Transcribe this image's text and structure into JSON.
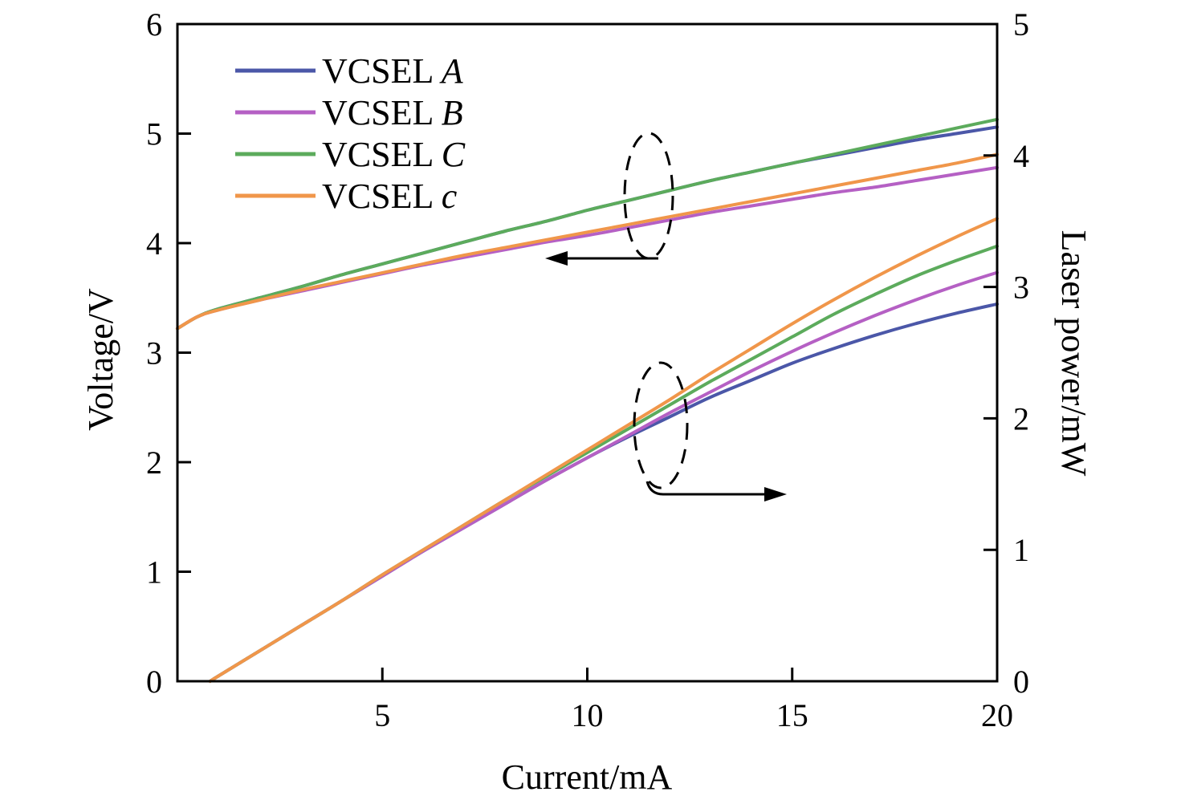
{
  "chart_data": {
    "type": "line",
    "xlabel": "Current/mA",
    "ylabel_left": "Voltage/V",
    "ylabel_right": "Laser power/mW",
    "xlim": [
      0,
      20
    ],
    "ylim_left": [
      0,
      6
    ],
    "ylim_right": [
      0,
      5
    ],
    "x_ticks": [
      5,
      10,
      15,
      20
    ],
    "y_left_ticks": [
      0,
      1,
      2,
      3,
      4,
      5,
      6
    ],
    "y_right_ticks": [
      0,
      1,
      2,
      3,
      4,
      5
    ],
    "grid": false,
    "legend_position": "top-left",
    "legend": [
      {
        "prefix": "VCSEL ",
        "letter": "A",
        "color": "#4b57a8"
      },
      {
        "prefix": "VCSEL ",
        "letter": "B",
        "color": "#b560c4"
      },
      {
        "prefix": "VCSEL ",
        "letter": "C",
        "color": "#5cab5c"
      },
      {
        "prefix": "VCSEL ",
        "letter": "c",
        "color": "#f0964a"
      }
    ],
    "voltage_series": [
      {
        "legend_index": 0,
        "axis": "left",
        "x": [
          0,
          0.5,
          1,
          2,
          3,
          4,
          5,
          6,
          7,
          8,
          9,
          10,
          11,
          12,
          13,
          14,
          15,
          16,
          17,
          18,
          19,
          20
        ],
        "y": [
          3.22,
          3.33,
          3.4,
          3.5,
          3.6,
          3.71,
          3.81,
          3.91,
          4.01,
          4.11,
          4.2,
          4.3,
          4.39,
          4.48,
          4.57,
          4.65,
          4.73,
          4.8,
          4.87,
          4.94,
          5.0,
          5.06
        ]
      },
      {
        "legend_index": 1,
        "axis": "left",
        "x": [
          0,
          0.5,
          1,
          2,
          3,
          4,
          5,
          6,
          7,
          8,
          9,
          10,
          11,
          12,
          13,
          14,
          15,
          16,
          17,
          18,
          19,
          20
        ],
        "y": [
          3.22,
          3.33,
          3.39,
          3.48,
          3.56,
          3.64,
          3.72,
          3.8,
          3.87,
          3.94,
          4.01,
          4.07,
          4.14,
          4.21,
          4.28,
          4.34,
          4.4,
          4.46,
          4.51,
          4.57,
          4.63,
          4.69
        ]
      },
      {
        "legend_index": 2,
        "axis": "left",
        "x": [
          0,
          0.5,
          1,
          2,
          3,
          4,
          5,
          6,
          7,
          8,
          9,
          10,
          11,
          12,
          13,
          14,
          15,
          16,
          17,
          18,
          19,
          20
        ],
        "y": [
          3.22,
          3.33,
          3.4,
          3.5,
          3.6,
          3.71,
          3.81,
          3.91,
          4.01,
          4.11,
          4.2,
          4.3,
          4.39,
          4.48,
          4.57,
          4.65,
          4.73,
          4.81,
          4.89,
          4.97,
          5.05,
          5.13
        ]
      },
      {
        "legend_index": 3,
        "axis": "left",
        "x": [
          0,
          0.5,
          1,
          2,
          3,
          4,
          5,
          6,
          7,
          8,
          9,
          10,
          11,
          12,
          13,
          14,
          15,
          16,
          17,
          18,
          19,
          20
        ],
        "y": [
          3.22,
          3.33,
          3.39,
          3.48,
          3.57,
          3.65,
          3.73,
          3.81,
          3.89,
          3.96,
          4.03,
          4.1,
          4.17,
          4.24,
          4.31,
          4.38,
          4.45,
          4.52,
          4.59,
          4.66,
          4.73,
          4.81
        ]
      }
    ],
    "power_series": [
      {
        "legend_index": 0,
        "axis": "right",
        "x": [
          0.8,
          1,
          2,
          3,
          4,
          5,
          6,
          7,
          8,
          9,
          10,
          11,
          12,
          13,
          14,
          15,
          16,
          17,
          18,
          19,
          20
        ],
        "y": [
          0.0,
          0.04,
          0.23,
          0.42,
          0.61,
          0.8,
          0.99,
          1.17,
          1.35,
          1.53,
          1.7,
          1.86,
          2.01,
          2.16,
          2.29,
          2.42,
          2.53,
          2.63,
          2.72,
          2.8,
          2.87
        ]
      },
      {
        "legend_index": 1,
        "axis": "right",
        "x": [
          0.8,
          1,
          2,
          3,
          4,
          5,
          6,
          7,
          8,
          9,
          10,
          11,
          12,
          13,
          14,
          15,
          16,
          17,
          18,
          19,
          20
        ],
        "y": [
          0.0,
          0.04,
          0.23,
          0.42,
          0.61,
          0.8,
          0.99,
          1.17,
          1.35,
          1.53,
          1.7,
          1.87,
          2.04,
          2.2,
          2.36,
          2.51,
          2.65,
          2.78,
          2.9,
          3.01,
          3.11
        ]
      },
      {
        "legend_index": 2,
        "axis": "right",
        "x": [
          0.8,
          1,
          2,
          3,
          4,
          5,
          6,
          7,
          8,
          9,
          10,
          11,
          12,
          13,
          14,
          15,
          16,
          17,
          18,
          19,
          20
        ],
        "y": [
          0.0,
          0.04,
          0.23,
          0.42,
          0.61,
          0.81,
          1.0,
          1.19,
          1.38,
          1.56,
          1.74,
          1.92,
          2.1,
          2.28,
          2.45,
          2.62,
          2.79,
          2.94,
          3.08,
          3.2,
          3.31
        ]
      },
      {
        "legend_index": 3,
        "axis": "right",
        "x": [
          0.8,
          1,
          2,
          3,
          4,
          5,
          6,
          7,
          8,
          9,
          10,
          11,
          12,
          13,
          14,
          15,
          16,
          17,
          18,
          19,
          20
        ],
        "y": [
          0.0,
          0.04,
          0.23,
          0.42,
          0.61,
          0.81,
          1.0,
          1.19,
          1.38,
          1.57,
          1.76,
          1.95,
          2.14,
          2.34,
          2.53,
          2.72,
          2.9,
          3.07,
          3.23,
          3.38,
          3.52
        ]
      }
    ]
  }
}
